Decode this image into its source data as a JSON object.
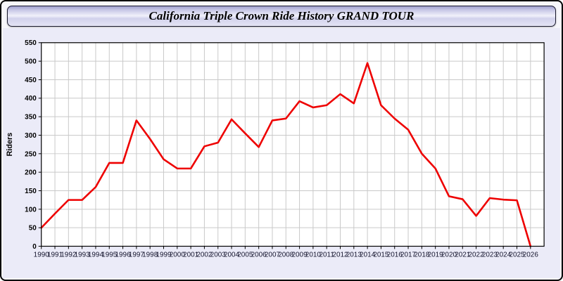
{
  "window": {
    "title": "California Triple Crown Ride History GRAND TOUR"
  },
  "chart_data": {
    "type": "line",
    "title": "California Triple Crown Ride History GRAND TOUR",
    "xlabel": "",
    "ylabel": "Riders",
    "ylim": [
      0,
      550
    ],
    "ytick_step": 50,
    "grid": true,
    "legend_position": "none",
    "x": [
      1990,
      1991,
      1992,
      1993,
      1994,
      1995,
      1996,
      1997,
      1998,
      1999,
      2000,
      2001,
      2002,
      2003,
      2004,
      2005,
      2006,
      2007,
      2008,
      2009,
      2010,
      2011,
      2012,
      2013,
      2014,
      2015,
      2016,
      2017,
      2018,
      2019,
      2020,
      2021,
      2022,
      2023,
      2024,
      2025,
      2026
    ],
    "series": [
      {
        "name": "Riders",
        "values": [
          50,
          88,
          125,
          125,
          160,
          225,
          225,
          340,
          290,
          235,
          210,
          210,
          270,
          280,
          343,
          305,
          268,
          340,
          345,
          392,
          375,
          381,
          411,
          386,
          495,
          381,
          345,
          315,
          250,
          210,
          135,
          127,
          82,
          130,
          126,
          124,
          0
        ]
      }
    ],
    "colors": {
      "line": "#ee0000",
      "plot_background": "#ffffff",
      "region_background": "#ebebf8",
      "gridline": "#c9c9c9",
      "axis": "#000000",
      "titlebar_top": "#9e9ece",
      "titlebar_mid": "#f1f1fb",
      "titlebar_bottom": "#e4e4f4"
    }
  }
}
